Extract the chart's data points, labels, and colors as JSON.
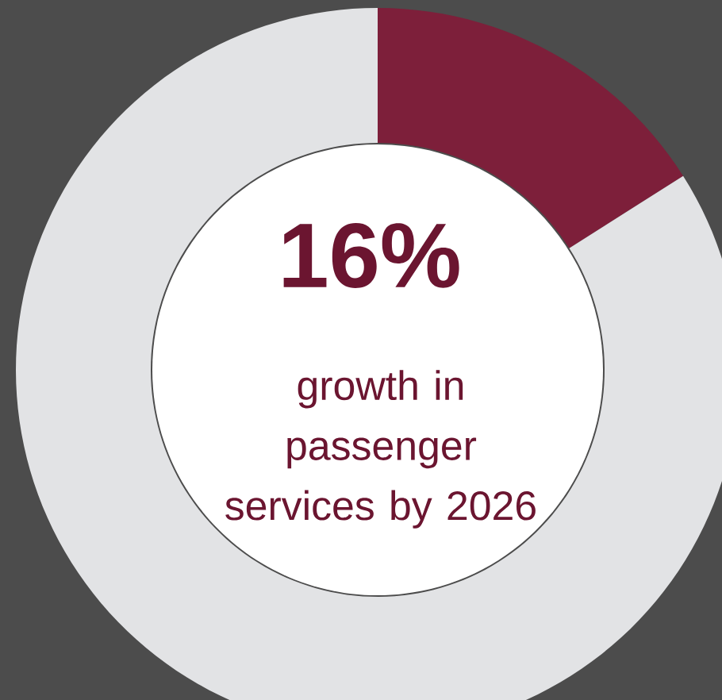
{
  "chart_data": {
    "type": "donut",
    "title": "growth in passenger services by 2026",
    "categories": [
      null,
      null
    ],
    "values": [
      16,
      84
    ],
    "colors": [
      "#7d1f3a",
      "#e2e3e5"
    ],
    "value_labels": [
      "16%",
      null
    ]
  }
}
